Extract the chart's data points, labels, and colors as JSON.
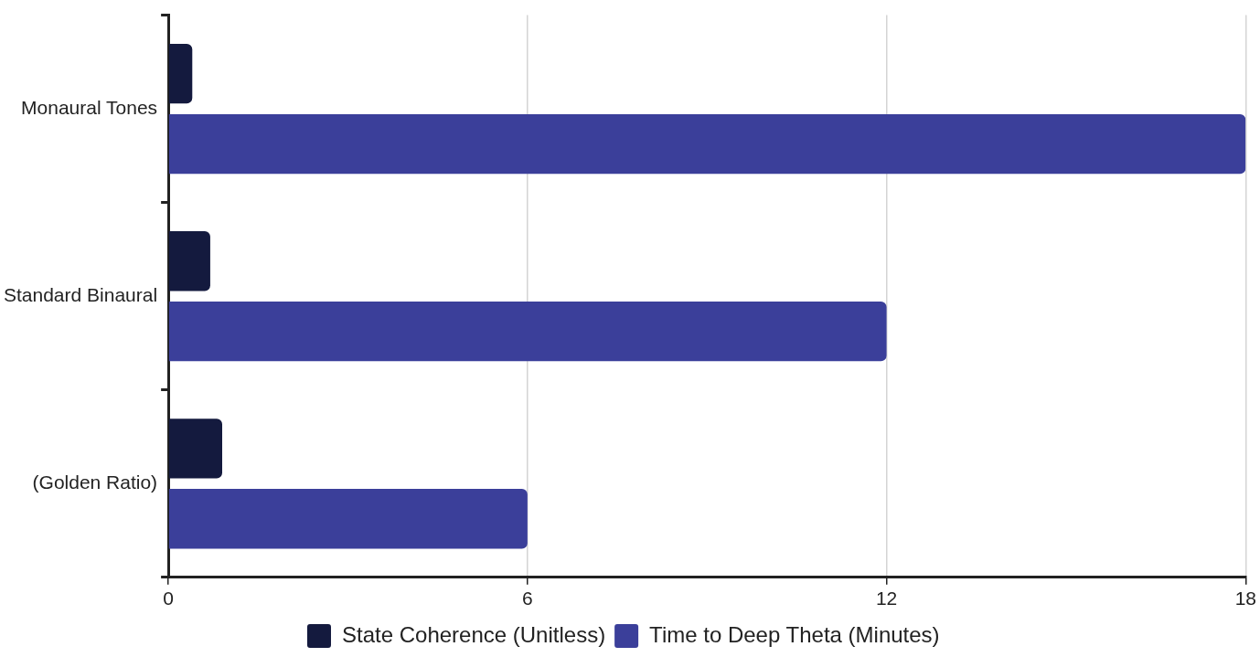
{
  "chart_data": {
    "type": "bar",
    "orientation": "horizontal",
    "categories": [
      "Monaural Tones",
      "Standard Binaural",
      "(Golden Ratio)"
    ],
    "series": [
      {
        "name": "State Coherence (Unitless)",
        "color": "#141a3e",
        "values": [
          0.4,
          0.7,
          0.9
        ]
      },
      {
        "name": "Time to Deep Theta (Minutes)",
        "color": "#3b3f9a",
        "values": [
          18,
          12,
          6
        ]
      }
    ],
    "xlim": [
      0,
      18
    ],
    "xticks": [
      0,
      6,
      12,
      18
    ],
    "grid": "x",
    "legend": "bottom"
  }
}
